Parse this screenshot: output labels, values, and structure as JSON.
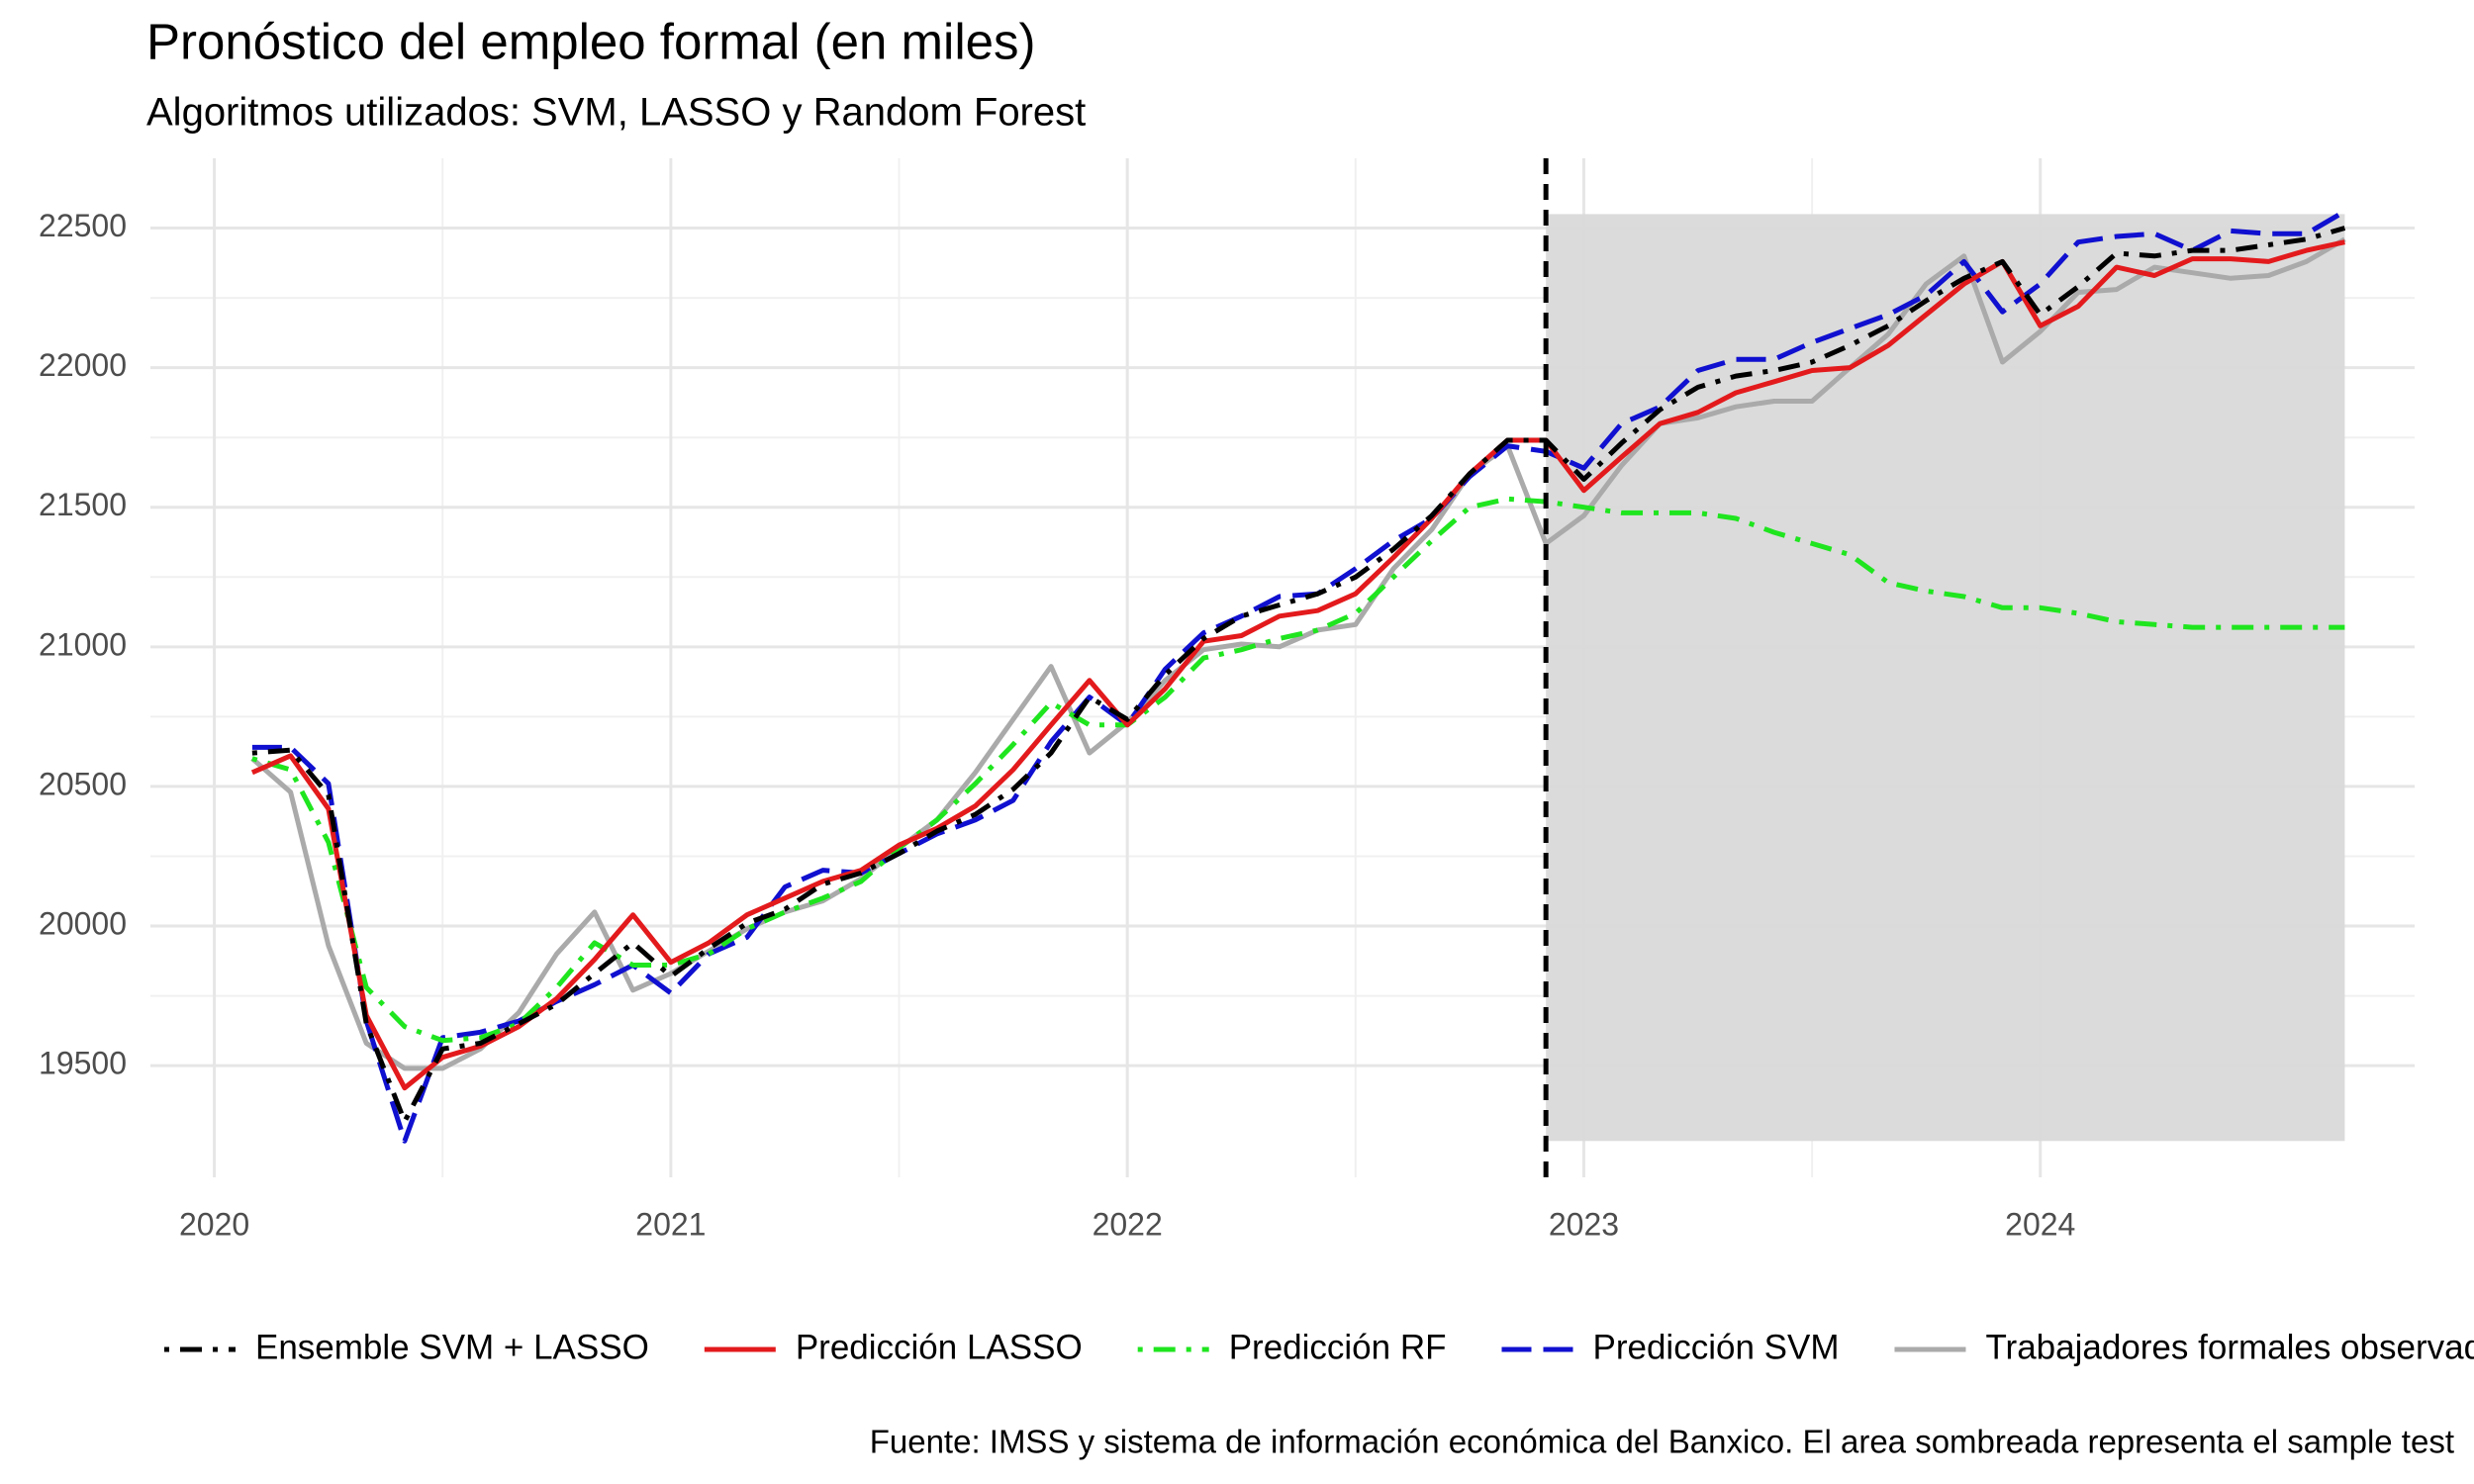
{
  "chart_data": {
    "type": "line",
    "title": "Pronóstico del empleo formal (en miles)",
    "subtitle": "Algoritmos utilizados: SVM, LASSO y Random Forest",
    "caption": "Fuente: IMSS y sistema de información económica del Banxico. El area sombreada representa el sample test",
    "x": [
      2020.083,
      2020.167,
      2020.25,
      2020.333,
      2020.417,
      2020.5,
      2020.583,
      2020.667,
      2020.75,
      2020.833,
      2020.917,
      2021.0,
      2021.083,
      2021.167,
      2021.25,
      2021.333,
      2021.417,
      2021.5,
      2021.583,
      2021.667,
      2021.75,
      2021.833,
      2021.917,
      2022.0,
      2022.083,
      2022.167,
      2022.25,
      2022.333,
      2022.417,
      2022.5,
      2022.583,
      2022.667,
      2022.75,
      2022.833,
      2022.917,
      2023.0,
      2023.083,
      2023.167,
      2023.25,
      2023.333,
      2023.417,
      2023.5,
      2023.583,
      2023.667,
      2023.75,
      2023.833,
      2023.917,
      2024.0,
      2024.083,
      2024.167,
      2024.25,
      2024.333,
      2024.417,
      2024.5,
      2024.583,
      2024.667
    ],
    "series": [
      {
        "name": "Ensemble SVM + LASSO",
        "color": "#000000",
        "line_style": "dotdash",
        "values": [
          20620,
          20630,
          20470,
          19650,
          19300,
          19560,
          19580,
          19650,
          19720,
          19830,
          19940,
          19820,
          19920,
          20010,
          20060,
          20150,
          20190,
          20260,
          20340,
          20400,
          20490,
          20620,
          20820,
          20740,
          20900,
          21030,
          21110,
          21150,
          21190,
          21250,
          21350,
          21470,
          21620,
          21740,
          21740,
          21600,
          21730,
          21850,
          21930,
          21970,
          21990,
          22020,
          22080,
          22150,
          22240,
          22320,
          22380,
          22190,
          22290,
          22410,
          22400,
          22420,
          22420,
          22440,
          22460,
          22500
        ]
      },
      {
        "name": "Predicción LASSO",
        "color": "#e31a1c",
        "line_style": "solid",
        "values": [
          20550,
          20610,
          20420,
          19680,
          19420,
          19530,
          19570,
          19640,
          19740,
          19880,
          20040,
          19870,
          19940,
          20040,
          20100,
          20160,
          20200,
          20290,
          20350,
          20430,
          20560,
          20720,
          20880,
          20720,
          20850,
          21020,
          21040,
          21110,
          21130,
          21190,
          21320,
          21460,
          21620,
          21740,
          21740,
          21560,
          21680,
          21800,
          21840,
          21910,
          21950,
          21990,
          22000,
          22080,
          22190,
          22300,
          22380,
          22150,
          22220,
          22360,
          22330,
          22390,
          22390,
          22380,
          22420,
          22450
        ]
      },
      {
        "name": "Predicción RF",
        "color": "#1fe51f",
        "line_style": "dotdash",
        "values": [
          20600,
          20560,
          20300,
          19780,
          19640,
          19590,
          19600,
          19650,
          19780,
          19940,
          19860,
          19860,
          19900,
          19990,
          20050,
          20100,
          20160,
          20280,
          20380,
          20510,
          20650,
          20800,
          20720,
          20720,
          20820,
          20960,
          20990,
          21030,
          21060,
          21120,
          21250,
          21380,
          21500,
          21530,
          21520,
          21500,
          21480,
          21480,
          21480,
          21460,
          21410,
          21370,
          21330,
          21230,
          21200,
          21180,
          21140,
          21140,
          21120,
          21090,
          21080,
          21070,
          21070,
          21070,
          21070,
          21070
        ]
      },
      {
        "name": "Predicción SVM",
        "color": "#1010d0",
        "line_style": "longdash",
        "values": [
          20640,
          20640,
          20510,
          19660,
          19230,
          19600,
          19620,
          19660,
          19730,
          19790,
          19860,
          19760,
          19900,
          19960,
          20140,
          20200,
          20190,
          20260,
          20330,
          20380,
          20450,
          20660,
          20820,
          20720,
          20920,
          21050,
          21110,
          21180,
          21190,
          21280,
          21380,
          21460,
          21610,
          21720,
          21700,
          21640,
          21800,
          21860,
          21990,
          22030,
          22030,
          22090,
          22140,
          22190,
          22260,
          22380,
          22200,
          22300,
          22450,
          22470,
          22480,
          22420,
          22490,
          22480,
          22480,
          22560
        ]
      },
      {
        "name": "Trabajadores formales observados",
        "color": "#aaaaaa",
        "line_style": "solid",
        "values": [
          20600,
          20480,
          19930,
          19580,
          19490,
          19490,
          19560,
          19690,
          19900,
          20050,
          19770,
          19830,
          19910,
          19990,
          20050,
          20090,
          20170,
          20280,
          20380,
          20550,
          20740,
          20930,
          20620,
          20730,
          20880,
          20990,
          21010,
          21000,
          21060,
          21080,
          21280,
          21420,
          21620,
          21720,
          21370,
          21470,
          21650,
          21800,
          21820,
          21860,
          21880,
          21880,
          22000,
          22120,
          22300,
          22400,
          22020,
          22130,
          22270,
          22280,
          22360,
          22340,
          22320,
          22330,
          22380,
          22460
        ]
      }
    ],
    "xlim": [
      2019.86,
      2024.82
    ],
    "xticks": [
      2020,
      2021,
      2022,
      2023,
      2024
    ],
    "ylim": [
      19100,
      22750
    ],
    "yticks": [
      19500,
      20000,
      20500,
      21000,
      21500,
      22000,
      22500
    ],
    "grid": true,
    "minor_grid": true,
    "vline": 2022.917,
    "shaded_region": {
      "xlim": [
        2022.917,
        2024.667
      ],
      "ylim": [
        19230,
        22550
      ],
      "color": "#d9d9d9"
    },
    "legend": "bottom"
  }
}
